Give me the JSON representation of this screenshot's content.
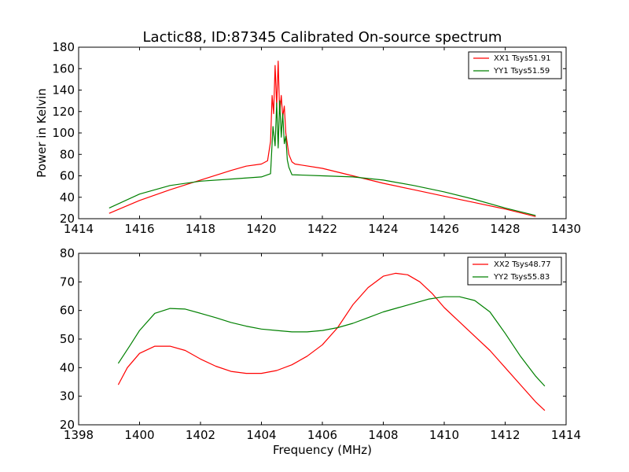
{
  "chart_data": [
    {
      "type": "line",
      "title": "Lactic88, ID:87345 Calibrated On-source spectrum",
      "xlabel": "",
      "ylabel": "Power in Kelvin",
      "xlim": [
        1414,
        1430
      ],
      "ylim": [
        20,
        180
      ],
      "xticks": [
        1414,
        1416,
        1418,
        1420,
        1422,
        1424,
        1426,
        1428,
        1430
      ],
      "yticks": [
        20,
        40,
        60,
        80,
        100,
        120,
        140,
        160,
        180
      ],
      "legend_position": "top-right",
      "series": [
        {
          "name": "XX1 Tsys51.91",
          "color": "#ff0000",
          "x": [
            1415.0,
            1416.0,
            1417.0,
            1418.0,
            1419.0,
            1419.5,
            1420.0,
            1420.2,
            1420.3,
            1420.35,
            1420.4,
            1420.45,
            1420.5,
            1420.55,
            1420.6,
            1420.65,
            1420.7,
            1420.75,
            1420.8,
            1420.85,
            1420.9,
            1421.0,
            1421.1,
            1422.0,
            1423.0,
            1424.0,
            1425.0,
            1426.0,
            1427.0,
            1428.0,
            1429.0
          ],
          "y": [
            25,
            37,
            47,
            56,
            65,
            69,
            71,
            74,
            92,
            135,
            118,
            163,
            125,
            167,
            118,
            135,
            115,
            125,
            100,
            90,
            80,
            73,
            71,
            67,
            60,
            53,
            47,
            41,
            35,
            29,
            22
          ]
        },
        {
          "name": "YY1 Tsys51.59",
          "color": "#008000",
          "x": [
            1415.0,
            1416.0,
            1417.0,
            1418.0,
            1419.0,
            1420.0,
            1420.3,
            1420.38,
            1420.45,
            1420.5,
            1420.55,
            1420.6,
            1420.65,
            1420.7,
            1420.75,
            1420.8,
            1420.85,
            1420.9,
            1421.0,
            1422.0,
            1423.0,
            1424.0,
            1425.0,
            1426.0,
            1427.0,
            1428.0,
            1429.0
          ],
          "y": [
            30,
            43,
            51,
            55,
            57,
            59,
            62,
            106,
            88,
            128,
            86,
            130,
            96,
            118,
            90,
            97,
            75,
            68,
            61,
            60,
            59,
            56,
            51,
            45,
            38,
            30,
            23
          ]
        }
      ]
    },
    {
      "type": "line",
      "title": "",
      "xlabel": "Frequency (MHz)",
      "ylabel": "",
      "xlim": [
        1398,
        1414
      ],
      "ylim": [
        20,
        80
      ],
      "xticks": [
        1398,
        1400,
        1402,
        1404,
        1406,
        1408,
        1410,
        1412,
        1414
      ],
      "yticks": [
        20,
        30,
        40,
        50,
        60,
        70,
        80
      ],
      "legend_position": "top-right",
      "series": [
        {
          "name": "XX2 Tsys48.77",
          "color": "#ff0000",
          "x": [
            1399.3,
            1399.6,
            1400.0,
            1400.5,
            1401.0,
            1401.5,
            1402.0,
            1402.5,
            1403.0,
            1403.5,
            1404.0,
            1404.5,
            1405.0,
            1405.5,
            1406.0,
            1406.5,
            1407.0,
            1407.5,
            1408.0,
            1408.4,
            1408.8,
            1409.2,
            1409.6,
            1410.0,
            1410.5,
            1411.0,
            1411.5,
            1412.0,
            1412.5,
            1413.0,
            1413.3
          ],
          "y": [
            34,
            40,
            45,
            47.5,
            47.5,
            46,
            43,
            40.5,
            38.7,
            38,
            38,
            39,
            41,
            44,
            48,
            54,
            62,
            68,
            72,
            73,
            72.5,
            70,
            66,
            61,
            56,
            51,
            46,
            40,
            34,
            28,
            25
          ]
        },
        {
          "name": "YY2 Tsys55.83",
          "color": "#008000",
          "x": [
            1399.3,
            1399.7,
            1400.0,
            1400.5,
            1401.0,
            1401.5,
            1402.0,
            1402.5,
            1403.0,
            1403.5,
            1404.0,
            1404.5,
            1405.0,
            1405.5,
            1406.0,
            1406.5,
            1407.0,
            1407.5,
            1408.0,
            1408.5,
            1409.0,
            1409.5,
            1410.0,
            1410.5,
            1411.0,
            1411.5,
            1412.0,
            1412.5,
            1413.0,
            1413.3
          ],
          "y": [
            41.5,
            48,
            53,
            59,
            60.7,
            60.5,
            59,
            57.5,
            55.8,
            54.5,
            53.5,
            53,
            52.5,
            52.5,
            53,
            54,
            55.5,
            57.5,
            59.5,
            61,
            62.5,
            64,
            64.8,
            64.8,
            63.5,
            59.5,
            52,
            44,
            37,
            33.5
          ]
        }
      ]
    }
  ]
}
